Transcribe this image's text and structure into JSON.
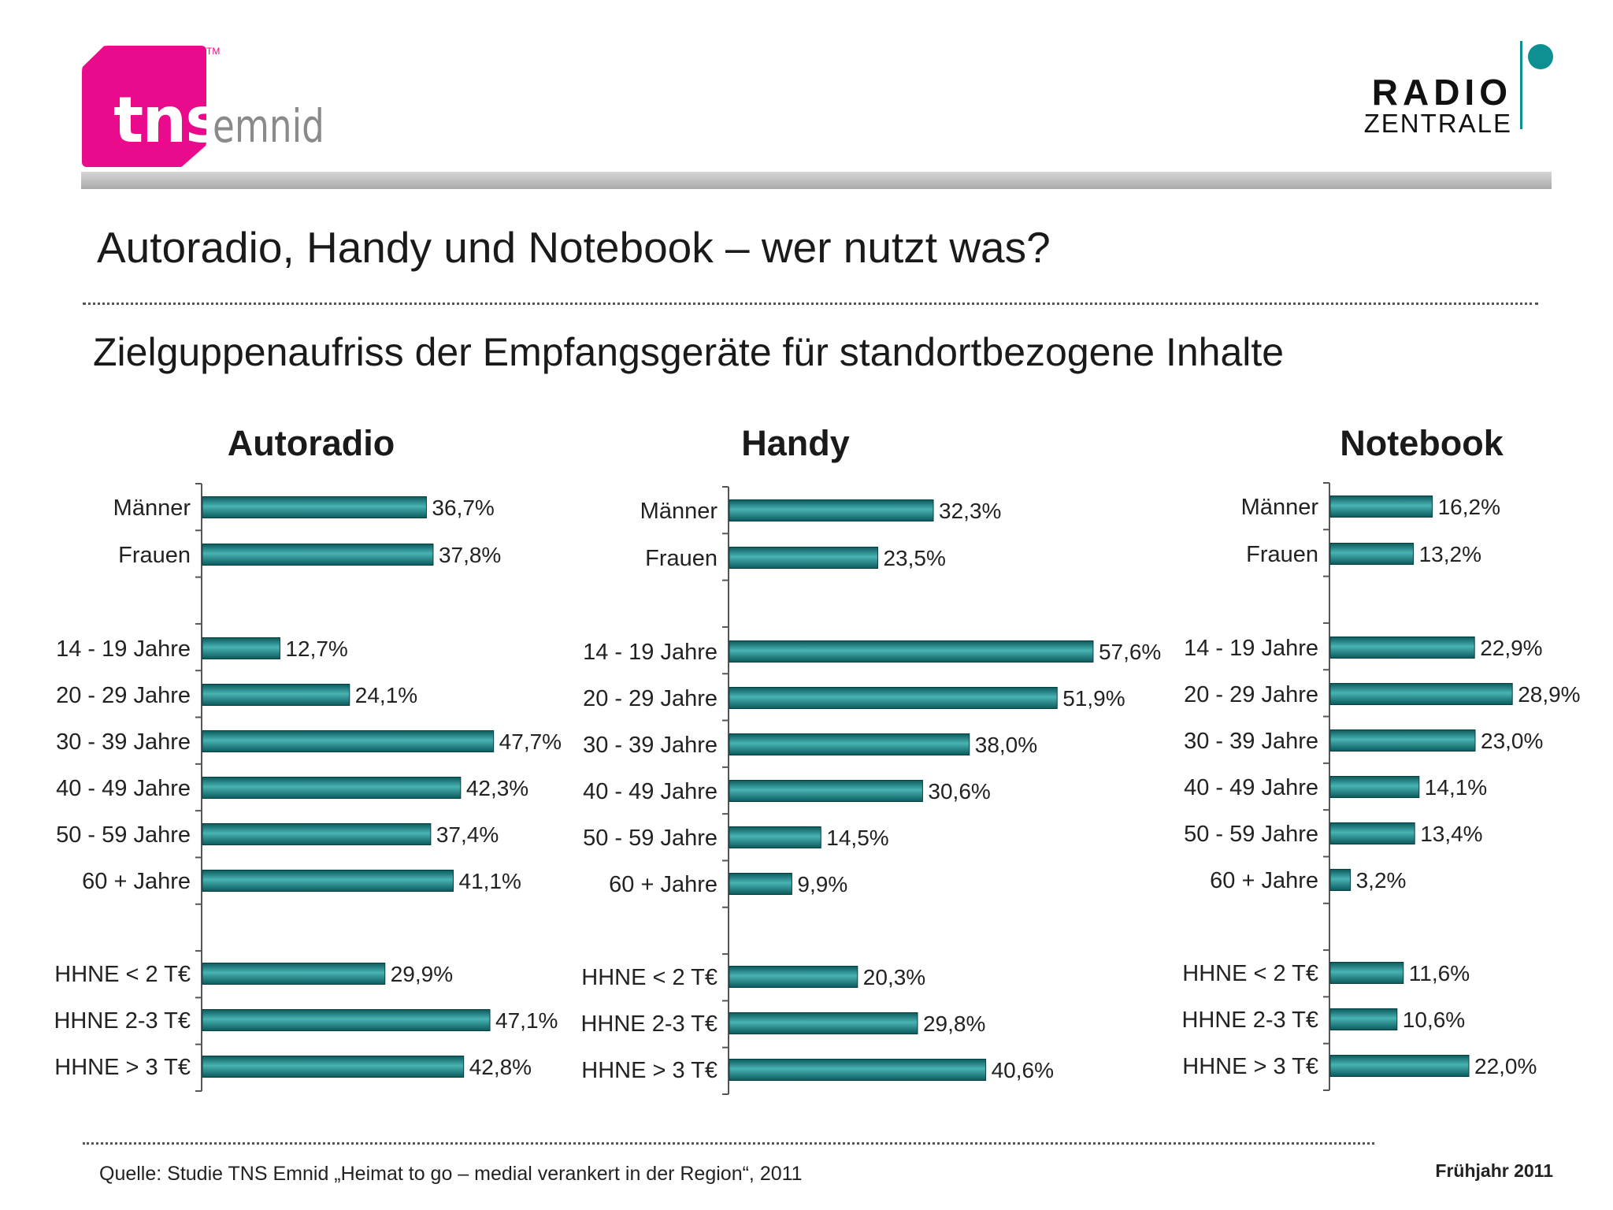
{
  "logos": {
    "tns": {
      "main": "tns",
      "sub": "emnid",
      "tm": "TM"
    },
    "radio_zentrale": {
      "line1": "RADIO",
      "line2": "ZENTRALE"
    }
  },
  "title": "Autoradio, Handy und Notebook – wer nutzt was?",
  "subtitle": "Zielguppenaufriss der Empfangsgeräte für standortbezogene Inhalte",
  "footer": {
    "source": "Quelle: Studie TNS Emnid „Heimat to go  – medial verankert in der Region“, 2011",
    "season": "Frühjahr 2011"
  },
  "colors": {
    "bar": "#0f7f82",
    "bar_dark": "#0a5a5c",
    "bar_light": "#49b3b3",
    "tns_pink": "#ea0a8c",
    "rz_teal": "#0e8f91"
  },
  "chart_data": [
    {
      "type": "bar",
      "title": "Autoradio",
      "categories": [
        "Männer",
        "Frauen",
        "14 - 19 Jahre",
        "20 - 29 Jahre",
        "30 - 39 Jahre",
        "40 - 49 Jahre",
        "50 - 59 Jahre",
        "60 + Jahre",
        "HHNE < 2 T€",
        "HHNE 2-3 T€",
        "HHNE > 3 T€"
      ],
      "values": [
        36.7,
        37.8,
        12.7,
        24.1,
        47.7,
        42.3,
        37.4,
        41.1,
        29.9,
        47.1,
        42.8
      ],
      "value_labels": [
        "36,7%",
        "37,8%",
        "12,7%",
        "24,1%",
        "47,7%",
        "42,3%",
        "37,4%",
        "41,1%",
        "29,9%",
        "47,1%",
        "42,8%"
      ],
      "groups": [
        2,
        6,
        3
      ],
      "orientation": "horizontal"
    },
    {
      "type": "bar",
      "title": "Handy",
      "categories": [
        "Männer",
        "Frauen",
        "14 - 19 Jahre",
        "20 - 29 Jahre",
        "30 - 39 Jahre",
        "40 - 49 Jahre",
        "50 - 59 Jahre",
        "60 + Jahre",
        "HHNE < 2 T€",
        "HHNE 2-3 T€",
        "HHNE > 3 T€"
      ],
      "values": [
        32.3,
        23.5,
        57.6,
        51.9,
        38.0,
        30.6,
        14.5,
        9.9,
        20.3,
        29.8,
        40.6
      ],
      "value_labels": [
        "32,3%",
        "23,5%",
        "57,6%",
        "51,9%",
        "38,0%",
        "30,6%",
        "14,5%",
        "9,9%",
        "20,3%",
        "29,8%",
        "40,6%"
      ],
      "groups": [
        2,
        6,
        3
      ],
      "orientation": "horizontal"
    },
    {
      "type": "bar",
      "title": "Notebook",
      "categories": [
        "Männer",
        "Frauen",
        "14 - 19 Jahre",
        "20 - 29 Jahre",
        "30 - 39 Jahre",
        "40 - 49 Jahre",
        "50 - 59 Jahre",
        "60 + Jahre",
        "HHNE < 2 T€",
        "HHNE 2-3 T€",
        "HHNE > 3 T€"
      ],
      "values": [
        16.2,
        13.2,
        22.9,
        28.9,
        23.0,
        14.1,
        13.4,
        3.2,
        11.6,
        10.6,
        22.0
      ],
      "value_labels": [
        "16,2%",
        "13,2%",
        "22,9%",
        "28,9%",
        "23,0%",
        "14,1%",
        "13,4%",
        "3,2%",
        "11,6%",
        "10,6%",
        "22,0%"
      ],
      "groups": [
        2,
        6,
        3
      ],
      "orientation": "horizontal"
    }
  ]
}
